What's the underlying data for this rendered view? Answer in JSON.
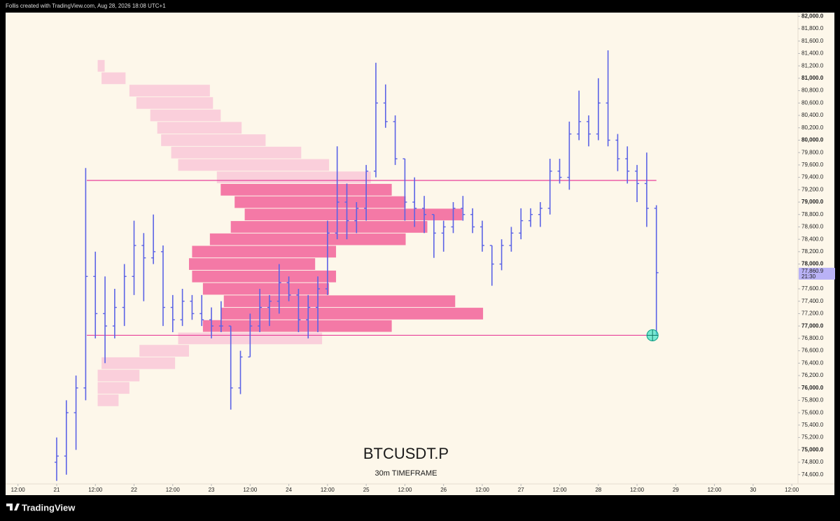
{
  "header": "Follis created with TradingView.com, Aug 28, 2026 18:08 UTC+1",
  "footer": "TradingView",
  "chart_data": {
    "type": "ohlc",
    "title": "BTCUSDT.P",
    "subtitle": "30m TIMEFRAME",
    "color": "#5b63e6",
    "x": [
      21.0,
      21.125,
      21.25,
      21.375,
      21.5,
      21.625,
      21.75,
      21.875,
      22.0,
      22.125,
      22.25,
      22.375,
      22.5,
      22.625,
      22.75,
      22.875,
      23.0,
      23.125,
      23.25,
      23.375,
      23.5,
      23.625,
      23.75,
      23.875,
      24.0,
      24.125,
      24.25,
      24.375,
      24.5,
      24.625,
      24.75,
      24.875,
      25.0,
      25.125,
      25.25,
      25.375,
      25.5,
      25.625,
      25.75,
      25.875,
      26.0,
      26.125,
      26.25,
      26.375,
      26.5,
      26.625,
      26.75,
      26.875,
      27.0,
      27.125,
      27.25,
      27.375,
      27.5,
      27.625,
      27.75,
      27.875,
      28.0,
      28.125,
      28.25,
      28.375,
      28.5,
      28.625,
      28.75
    ],
    "open": [
      74800,
      74900,
      75600,
      76000,
      77800,
      77200,
      77000,
      77300,
      77800,
      78300,
      78100,
      78200,
      77300,
      77100,
      77400,
      77200,
      77100,
      77000,
      77000,
      76000,
      76500,
      77000,
      77300,
      77400,
      77700,
      77500,
      77100,
      77300,
      77600,
      78500,
      79000,
      78700,
      78900,
      79500,
      80600,
      80300,
      79700,
      79000,
      78900,
      78800,
      78500,
      78600,
      78900,
      78800,
      78600,
      78300,
      78000,
      78300,
      78500,
      78700,
      78800,
      78900,
      79500,
      79400,
      80100,
      80300,
      80100,
      80600,
      80000,
      79700,
      79500,
      79300,
      78900
    ],
    "high": [
      75200,
      75800,
      76200,
      79550,
      78200,
      77800,
      77600,
      78000,
      78700,
      78500,
      78800,
      78300,
      77500,
      77600,
      77500,
      77500,
      77300,
      77400,
      77000,
      76600,
      77200,
      77600,
      77500,
      78000,
      77800,
      77600,
      77500,
      77800,
      78700,
      79900,
      79300,
      79000,
      79600,
      81250,
      80900,
      80400,
      79700,
      79400,
      79100,
      78800,
      78700,
      79000,
      79100,
      78900,
      78700,
      78300,
      78400,
      78600,
      78900,
      78900,
      79000,
      79700,
      79700,
      80300,
      80800,
      80400,
      81000,
      81450,
      80100,
      79900,
      79600,
      79800,
      78950
    ],
    "low": [
      74500,
      74600,
      75000,
      75800,
      76800,
      76400,
      76800,
      77000,
      77500,
      77400,
      78000,
      77000,
      76900,
      77000,
      77100,
      77000,
      76800,
      76900,
      75650,
      75900,
      76500,
      76900,
      77000,
      77200,
      77400,
      76900,
      76800,
      76900,
      77500,
      78400,
      78400,
      78500,
      78700,
      79400,
      80200,
      79600,
      78700,
      78600,
      78500,
      78100,
      78200,
      78500,
      78700,
      78500,
      78200,
      77650,
      77900,
      78200,
      78400,
      78600,
      78600,
      78800,
      79300,
      79200,
      80000,
      79900,
      80000,
      79900,
      79500,
      79300,
      79000,
      78600,
      76850
    ],
    "close": [
      74900,
      75600,
      76000,
      77800,
      77200,
      77000,
      77300,
      77800,
      78300,
      78100,
      78200,
      77300,
      77100,
      77400,
      77200,
      77100,
      77000,
      77000,
      76000,
      76500,
      77000,
      77300,
      77400,
      77700,
      77500,
      77100,
      77300,
      77600,
      78500,
      79000,
      78700,
      78900,
      79500,
      80600,
      80300,
      79700,
      79000,
      78900,
      78800,
      78500,
      78600,
      78900,
      78800,
      78600,
      78300,
      78000,
      78300,
      78500,
      78700,
      78800,
      78900,
      79500,
      79400,
      80100,
      80300,
      80100,
      80600,
      80000,
      79700,
      79500,
      79300,
      78900,
      77860.9
    ],
    "xlim": [
      20.34,
      30.58
    ],
    "xticks": [
      {
        "value": 20.5,
        "label": "12:00"
      },
      21,
      {
        "value": 21.5,
        "label": "12:00"
      },
      22,
      {
        "value": 22.5,
        "label": "12:00"
      },
      23,
      {
        "value": 23.5,
        "label": "12:00"
      },
      24,
      {
        "value": 24.5,
        "label": "12:00"
      },
      25,
      {
        "value": 25.5,
        "label": "12:00"
      },
      26,
      {
        "value": 26.5,
        "label": "12:00"
      },
      27,
      {
        "value": 27.5,
        "label": "12:00"
      },
      28,
      {
        "value": 28.5,
        "label": "12:00"
      },
      29,
      {
        "value": 29.5,
        "label": "12:00"
      },
      30,
      {
        "value": 30.5,
        "label": "12:00"
      }
    ],
    "ylim": [
      74450,
      82060
    ],
    "yticks": [
      {
        "value": 74600,
        "label": "74,600.0"
      },
      {
        "value": 74800,
        "label": "74,800.0"
      },
      {
        "value": 75000,
        "label": "75,000.0"
      },
      {
        "value": 75200,
        "label": "75,200.0"
      },
      {
        "value": 75400,
        "label": "75,400.0"
      },
      {
        "value": 75600,
        "label": "75,600.0"
      },
      {
        "value": 75800,
        "label": "75,800.0"
      },
      {
        "value": 76000,
        "label": "76,000.0"
      },
      {
        "value": 76200,
        "label": "76,200.0"
      },
      {
        "value": 76400,
        "label": "76,400.0"
      },
      {
        "value": 76600,
        "label": "76,600.0"
      },
      {
        "value": 76800,
        "label": "76,800.0"
      },
      {
        "value": 77000,
        "label": "77,000.0"
      },
      {
        "value": 77200,
        "label": "77,200.0"
      },
      {
        "value": 77400,
        "label": "77,400.0"
      },
      {
        "value": 77600,
        "label": "77,600.0"
      },
      {
        "value": 78000,
        "label": "78,000.0"
      },
      {
        "value": 78200,
        "label": "78,200.0"
      },
      {
        "value": 78400,
        "label": "78,400.0"
      },
      {
        "value": 78600,
        "label": "78,600.0"
      },
      {
        "value": 78800,
        "label": "78,800.0"
      },
      {
        "value": 79000,
        "label": "79,000.0"
      },
      {
        "value": 79200,
        "label": "79,200.0"
      },
      {
        "value": 79400,
        "label": "79,400.0"
      },
      {
        "value": 79600,
        "label": "79,600.0"
      },
      {
        "value": 79800,
        "label": "79,800.0"
      },
      {
        "value": 80000,
        "label": "80,000.0"
      },
      {
        "value": 80200,
        "label": "80,200.0"
      },
      {
        "value": 80400,
        "label": "80,400.0"
      },
      {
        "value": 80600,
        "label": "80,600.0"
      },
      {
        "value": 80800,
        "label": "80,800.0"
      },
      {
        "value": 81000,
        "label": "81,000.0"
      },
      {
        "value": 81200,
        "label": "81,200.0"
      },
      {
        "value": 81400,
        "label": "81,400.0"
      },
      {
        "value": 81600,
        "label": "81,600.0"
      },
      {
        "value": 81800,
        "label": "81,800.0"
      },
      {
        "value": 82000,
        "label": "82,000.0"
      }
    ],
    "last_price": {
      "value": 77860.9,
      "label": "77,860.9",
      "countdown": "21:30",
      "color": "#b9b2f6"
    },
    "levels": [
      {
        "value": 79350,
        "x": [
          21.39,
          28.75
        ]
      },
      {
        "value": 76850,
        "x": [
          21.39,
          28.75
        ]
      }
    ],
    "level_color": "#e8409a",
    "marker": {
      "x": 28.7,
      "y": 76850,
      "color": "#3fe3c8"
    },
    "volume_profile": {
      "inside_color": "#f2639a",
      "outside_color": "#f9c8d8",
      "prices": [
        75800,
        76000,
        76200,
        76400,
        76600,
        76800,
        77000,
        77200,
        77400,
        77600,
        77800,
        78000,
        78200,
        78400,
        78600,
        78800,
        79000,
        79200,
        79400,
        79600,
        79800,
        80000,
        80200,
        80400,
        80600,
        80800,
        81000,
        81200
      ],
      "x0": [
        21.53,
        21.53,
        21.53,
        21.58,
        22.07,
        22.57,
        22.89,
        23.12,
        23.16,
        22.89,
        22.75,
        22.71,
        22.75,
        22.98,
        23.25,
        23.43,
        23.3,
        23.12,
        23.07,
        22.57,
        22.48,
        22.35,
        22.3,
        22.21,
        22.03,
        21.94,
        21.58,
        21.53
      ],
      "x1": [
        21.8,
        21.94,
        22.07,
        22.53,
        22.71,
        24.43,
        25.33,
        26.51,
        26.15,
        24.52,
        24.61,
        24.34,
        24.61,
        25.51,
        25.79,
        26.24,
        25.51,
        25.33,
        25.06,
        24.52,
        24.16,
        23.7,
        23.39,
        23.12,
        23.02,
        22.98,
        21.89,
        21.62
      ]
    }
  }
}
